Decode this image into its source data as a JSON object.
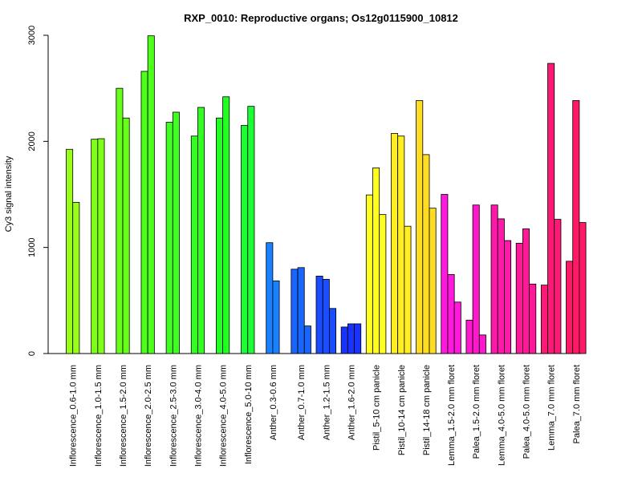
{
  "chart_data": {
    "type": "bar",
    "title": "RXP_0010: Reproductive organs; Os12g0115900_10812",
    "xlabel": "",
    "ylabel": "Cy3 signal intensity",
    "ylim": [
      0,
      3000
    ],
    "yticks": [
      0,
      1000,
      2000,
      3000
    ],
    "grid": false,
    "legend": "none",
    "groups": [
      {
        "label": "Inflorescence_0.6-1.0 mm",
        "color": "#99ff19",
        "values": [
          1925,
          1425
        ]
      },
      {
        "label": "Inflorescence_1.0-1.5 mm",
        "color": "#80ff19",
        "values": [
          2020,
          2025
        ]
      },
      {
        "label": "Inflorescence_1.5-2.0 mm",
        "color": "#66ff19",
        "values": [
          2500,
          2220
        ]
      },
      {
        "label": "Inflorescence_2.0-2.5 mm",
        "color": "#4dff19",
        "values": [
          2660,
          2995
        ]
      },
      {
        "label": "Inflorescence_2.5-3.0 mm",
        "color": "#40ff22",
        "values": [
          2180,
          2275
        ]
      },
      {
        "label": "Inflorescence_3.0-4.0 mm",
        "color": "#33ff22",
        "values": [
          2050,
          2320
        ]
      },
      {
        "label": "Inflorescence_4.0-5.0 mm",
        "color": "#22ff22",
        "values": [
          2220,
          2420
        ]
      },
      {
        "label": "Inflorescence_5.0-10 mm",
        "color": "#19ff33",
        "values": [
          2150,
          2330
        ]
      },
      {
        "label": "Anther_0.3-0.6 mm",
        "color": "#1980ff",
        "values": [
          1045,
          685
        ]
      },
      {
        "label": "Anther_0.7-1.0 mm",
        "color": "#1966ff",
        "values": [
          795,
          810,
          260
        ]
      },
      {
        "label": "Anther_1.2-1.5 mm",
        "color": "#194dff",
        "values": [
          730,
          700,
          425
        ]
      },
      {
        "label": "Anther_1.6-2.0 mm",
        "color": "#1933ff",
        "values": [
          250,
          280,
          280
        ]
      },
      {
        "label": "Pistil_5-10 cm panicle",
        "color": "#ffff22",
        "values": [
          1495,
          1750,
          1310
        ]
      },
      {
        "label": "Pistil_10-14 cm panicle",
        "color": "#ffee22",
        "values": [
          2075,
          2050,
          1200
        ]
      },
      {
        "label": "Pistil_14-18 cm panicle",
        "color": "#ffdd22",
        "values": [
          2385,
          1875,
          1370
        ]
      },
      {
        "label": "Lemma_1.5-2.0 mm floret",
        "color": "#ff19dd",
        "values": [
          1500,
          745,
          485
        ]
      },
      {
        "label": "Palea_1.5-2.0 mm floret",
        "color": "#ff19cc",
        "values": [
          315,
          1400,
          175
        ]
      },
      {
        "label": "Lemma_4.0-5.0 mm floret",
        "color": "#ff19aa",
        "values": [
          1400,
          1270,
          1065
        ]
      },
      {
        "label": "Palea_4.0-5.0 mm floret",
        "color": "#ff1999",
        "values": [
          1040,
          1175,
          655
        ]
      },
      {
        "label": "Lemma_7.0 mm floret",
        "color": "#ff1977",
        "values": [
          645,
          2735,
          1265
        ]
      },
      {
        "label": "Palea_7.0 mm floret",
        "color": "#ff1966",
        "values": [
          870,
          2385,
          1235
        ]
      }
    ]
  }
}
